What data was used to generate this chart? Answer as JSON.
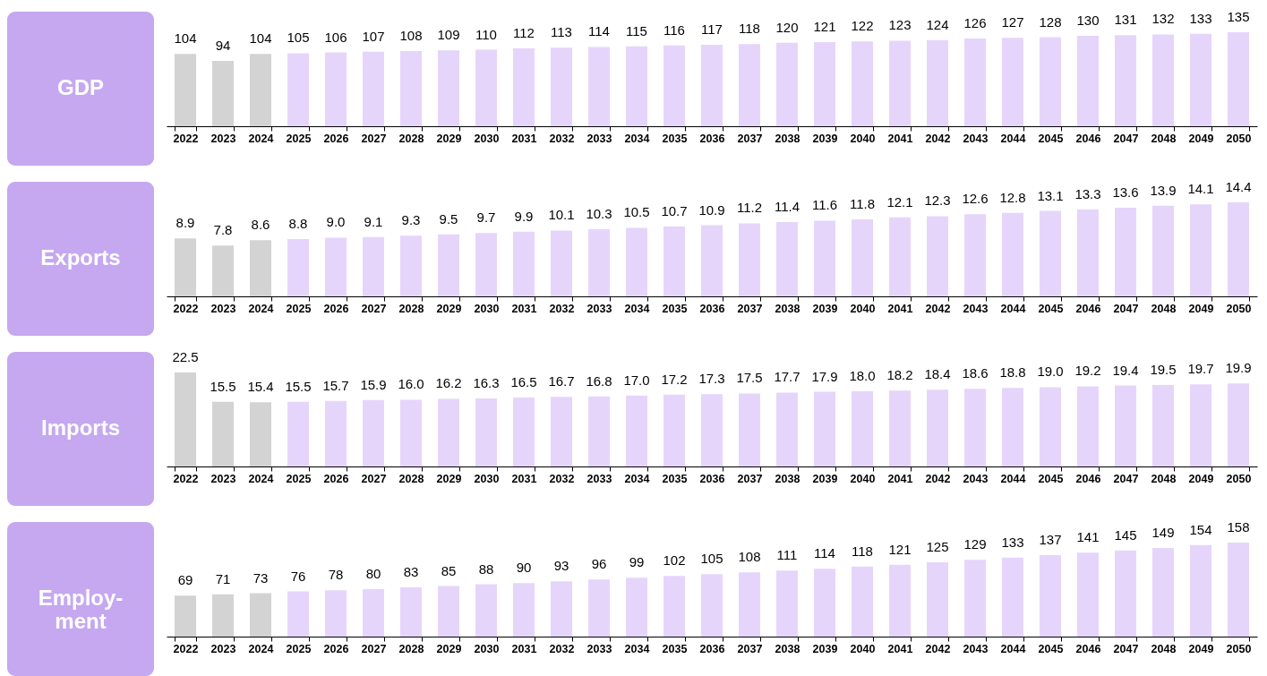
{
  "chart_data": [
    {
      "type": "bar",
      "title": "GDP",
      "categories": [
        "2022",
        "2023",
        "2024",
        "2025",
        "2026",
        "2027",
        "2028",
        "2029",
        "2030",
        "2031",
        "2032",
        "2033",
        "2034",
        "2035",
        "2036",
        "2037",
        "2038",
        "2039",
        "2040",
        "2041",
        "2042",
        "2043",
        "2044",
        "2045",
        "2046",
        "2047",
        "2048",
        "2049",
        "2050"
      ],
      "values": [
        104,
        94,
        104,
        105,
        106,
        107,
        108,
        109,
        110,
        112,
        113,
        114,
        115,
        116,
        117,
        118,
        120,
        121,
        122,
        123,
        124,
        126,
        127,
        128,
        130,
        131,
        132,
        133,
        135
      ],
      "value_labels": [
        "104",
        "94",
        "104",
        "105",
        "106",
        "107",
        "108",
        "109",
        "110",
        "112",
        "113",
        "114",
        "115",
        "116",
        "117",
        "118",
        "120",
        "121",
        "122",
        "123",
        "124",
        "126",
        "127",
        "128",
        "130",
        "131",
        "132",
        "133",
        "135"
      ],
      "colors": [
        "#d3d3d3",
        "#d3d3d3",
        "#d3d3d3",
        "#e6d5fb",
        "#e6d5fb",
        "#e6d5fb",
        "#e6d5fb",
        "#e6d5fb",
        "#e6d5fb",
        "#e6d5fb",
        "#e6d5fb",
        "#e6d5fb",
        "#e6d5fb",
        "#e6d5fb",
        "#e6d5fb",
        "#e6d5fb",
        "#e6d5fb",
        "#e6d5fb",
        "#e6d5fb",
        "#e6d5fb",
        "#e6d5fb",
        "#e6d5fb",
        "#e6d5fb",
        "#e6d5fb",
        "#e6d5fb",
        "#e6d5fb",
        "#e6d5fb",
        "#e6d5fb",
        "#e6d5fb"
      ]
    },
    {
      "type": "bar",
      "title": "Exports",
      "categories": [
        "2022",
        "2023",
        "2024",
        "2025",
        "2026",
        "2027",
        "2028",
        "2029",
        "2030",
        "2031",
        "2032",
        "2033",
        "2034",
        "2035",
        "2036",
        "2037",
        "2038",
        "2039",
        "2040",
        "2041",
        "2042",
        "2043",
        "2044",
        "2045",
        "2046",
        "2047",
        "2048",
        "2049",
        "2050"
      ],
      "values": [
        8.9,
        7.8,
        8.6,
        8.8,
        9.0,
        9.1,
        9.3,
        9.5,
        9.7,
        9.9,
        10.1,
        10.3,
        10.5,
        10.7,
        10.9,
        11.2,
        11.4,
        11.6,
        11.8,
        12.1,
        12.3,
        12.6,
        12.8,
        13.1,
        13.3,
        13.6,
        13.9,
        14.1,
        14.4
      ],
      "value_labels": [
        "8.9",
        "7.8",
        "8.6",
        "8.8",
        "9.0",
        "9.1",
        "9.3",
        "9.5",
        "9.7",
        "9.9",
        "10.1",
        "10.3",
        "10.5",
        "10.7",
        "10.9",
        "11.2",
        "11.4",
        "11.6",
        "11.8",
        "12.1",
        "12.3",
        "12.6",
        "12.8",
        "13.1",
        "13.3",
        "13.6",
        "13.9",
        "14.1",
        "14.4"
      ],
      "colors": [
        "#d3d3d3",
        "#d3d3d3",
        "#d3d3d3",
        "#e6d5fb",
        "#e6d5fb",
        "#e6d5fb",
        "#e6d5fb",
        "#e6d5fb",
        "#e6d5fb",
        "#e6d5fb",
        "#e6d5fb",
        "#e6d5fb",
        "#e6d5fb",
        "#e6d5fb",
        "#e6d5fb",
        "#e6d5fb",
        "#e6d5fb",
        "#e6d5fb",
        "#e6d5fb",
        "#e6d5fb",
        "#e6d5fb",
        "#e6d5fb",
        "#e6d5fb",
        "#e6d5fb",
        "#e6d5fb",
        "#e6d5fb",
        "#e6d5fb",
        "#e6d5fb",
        "#e6d5fb"
      ]
    },
    {
      "type": "bar",
      "title": "Imports",
      "categories": [
        "2022",
        "2023",
        "2024",
        "2025",
        "2026",
        "2027",
        "2028",
        "2029",
        "2030",
        "2031",
        "2032",
        "2033",
        "2034",
        "2035",
        "2036",
        "2037",
        "2038",
        "2039",
        "2040",
        "2041",
        "2042",
        "2043",
        "2044",
        "2045",
        "2046",
        "2047",
        "2048",
        "2049",
        "2050"
      ],
      "values": [
        22.5,
        15.5,
        15.4,
        15.5,
        15.7,
        15.9,
        16.0,
        16.2,
        16.3,
        16.5,
        16.7,
        16.8,
        17.0,
        17.2,
        17.3,
        17.5,
        17.7,
        17.9,
        18.0,
        18.2,
        18.4,
        18.6,
        18.8,
        19.0,
        19.2,
        19.4,
        19.5,
        19.7,
        19.9
      ],
      "value_labels": [
        "22.5",
        "15.5",
        "15.4",
        "15.5",
        "15.7",
        "15.9",
        "16.0",
        "16.2",
        "16.3",
        "16.5",
        "16.7",
        "16.8",
        "17.0",
        "17.2",
        "17.3",
        "17.5",
        "17.7",
        "17.9",
        "18.0",
        "18.2",
        "18.4",
        "18.6",
        "18.8",
        "19.0",
        "19.2",
        "19.4",
        "19.5",
        "19.7",
        "19.9"
      ],
      "colors": [
        "#d3d3d3",
        "#d3d3d3",
        "#d3d3d3",
        "#e6d5fb",
        "#e6d5fb",
        "#e6d5fb",
        "#e6d5fb",
        "#e6d5fb",
        "#e6d5fb",
        "#e6d5fb",
        "#e6d5fb",
        "#e6d5fb",
        "#e6d5fb",
        "#e6d5fb",
        "#e6d5fb",
        "#e6d5fb",
        "#e6d5fb",
        "#e6d5fb",
        "#e6d5fb",
        "#e6d5fb",
        "#e6d5fb",
        "#e6d5fb",
        "#e6d5fb",
        "#e6d5fb",
        "#e6d5fb",
        "#e6d5fb",
        "#e6d5fb",
        "#e6d5fb",
        "#e6d5fb"
      ]
    },
    {
      "type": "bar",
      "title": "Employ-\nment",
      "categories": [
        "2022",
        "2023",
        "2024",
        "2025",
        "2026",
        "2027",
        "2028",
        "2029",
        "2030",
        "2031",
        "2032",
        "2033",
        "2034",
        "2035",
        "2036",
        "2037",
        "2038",
        "2039",
        "2040",
        "2041",
        "2042",
        "2043",
        "2044",
        "2045",
        "2046",
        "2047",
        "2048",
        "2049",
        "2050"
      ],
      "values": [
        69,
        71,
        73,
        76,
        78,
        80,
        83,
        85,
        88,
        90,
        93,
        96,
        99,
        102,
        105,
        108,
        111,
        114,
        118,
        121,
        125,
        129,
        133,
        137,
        141,
        145,
        149,
        154,
        158
      ],
      "value_labels": [
        "69",
        "71",
        "73",
        "76",
        "78",
        "80",
        "83",
        "85",
        "88",
        "90",
        "93",
        "96",
        "99",
        "102",
        "105",
        "108",
        "111",
        "114",
        "118",
        "121",
        "125",
        "129",
        "133",
        "137",
        "141",
        "145",
        "149",
        "154",
        "158"
      ],
      "colors": [
        "#d3d3d3",
        "#d3d3d3",
        "#d3d3d3",
        "#e6d5fb",
        "#e6d5fb",
        "#e6d5fb",
        "#e6d5fb",
        "#e6d5fb",
        "#e6d5fb",
        "#e6d5fb",
        "#e6d5fb",
        "#e6d5fb",
        "#e6d5fb",
        "#e6d5fb",
        "#e6d5fb",
        "#e6d5fb",
        "#e6d5fb",
        "#e6d5fb",
        "#e6d5fb",
        "#e6d5fb",
        "#e6d5fb",
        "#e6d5fb",
        "#e6d5fb",
        "#e6d5fb",
        "#e6d5fb",
        "#e6d5fb",
        "#e6d5fb",
        "#e6d5fb",
        "#e6d5fb"
      ]
    }
  ]
}
